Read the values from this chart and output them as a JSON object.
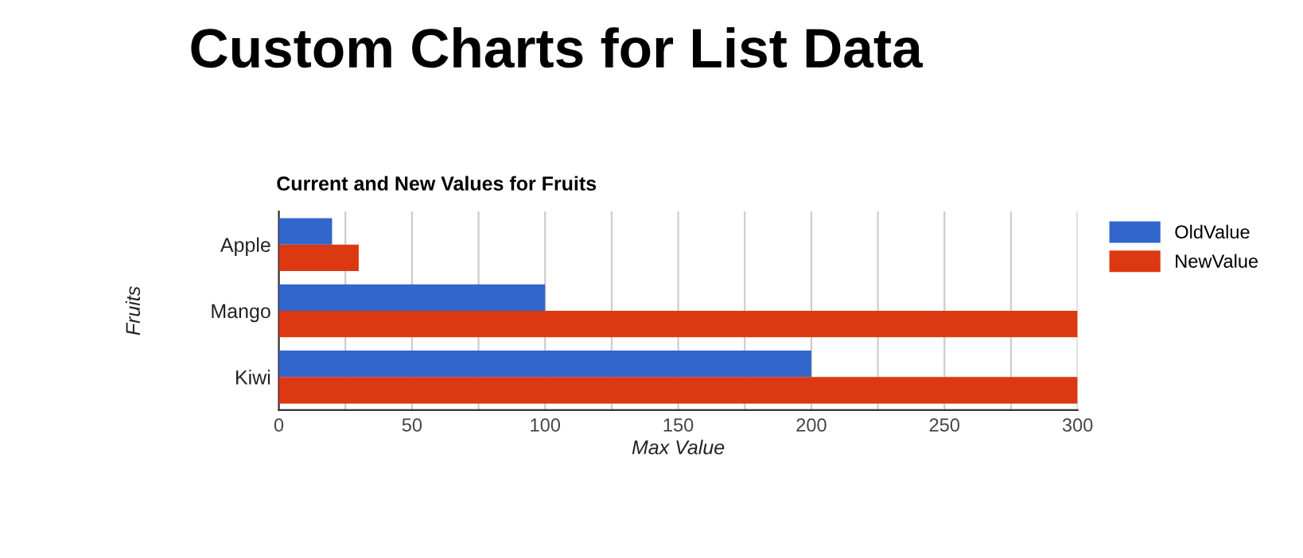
{
  "chart_data": {
    "type": "bar",
    "orientation": "horizontal",
    "title": "Custom Charts for List Data",
    "subtitle": "Current and New Values for Fruits",
    "xlabel": "Max Value",
    "ylabel": "Fruits",
    "categories": [
      "Apple",
      "Mango",
      "Kiwi"
    ],
    "series": [
      {
        "name": "OldValue",
        "color": "#3366cc",
        "values": [
          20,
          100,
          200
        ]
      },
      {
        "name": "NewValue",
        "color": "#dc3912",
        "values": [
          30,
          300,
          300
        ]
      }
    ],
    "xlim": [
      0,
      300
    ],
    "xticks": [
      0,
      {
        "value": 25,
        "label": null
      },
      50,
      {
        "value": 75,
        "label": null
      },
      100,
      {
        "value": 125,
        "label": null
      },
      150,
      {
        "value": 175,
        "label": null
      },
      200,
      {
        "value": 225,
        "label": null
      },
      250,
      {
        "value": 275,
        "label": null
      },
      300
    ],
    "grid": "x",
    "legend": "top right"
  }
}
